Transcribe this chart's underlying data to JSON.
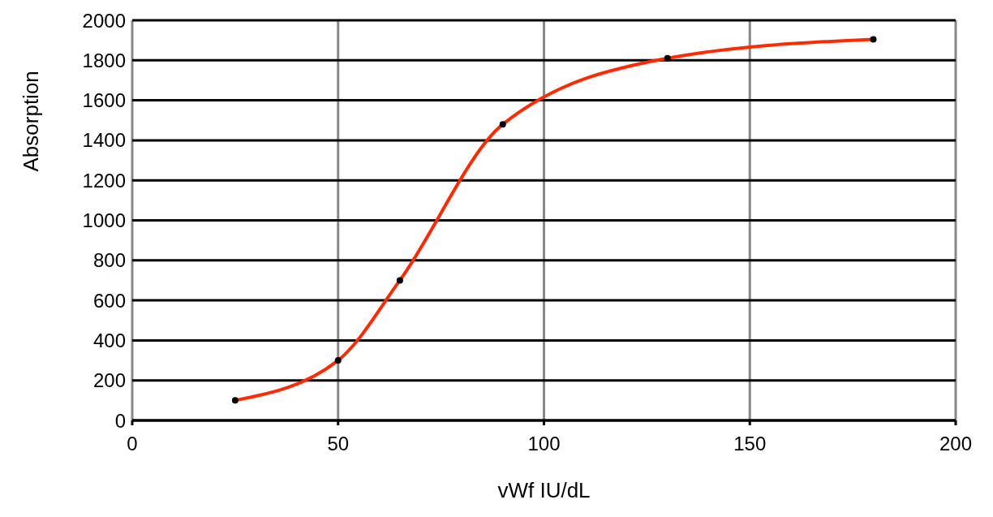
{
  "chart_data": {
    "type": "line",
    "xlabel": "vWf IU/dL",
    "ylabel": "Absorption",
    "x": [
      25,
      50,
      65,
      90,
      130,
      180
    ],
    "series": [
      {
        "color": "#ff2a00",
        "values": [
          100,
          300,
          700,
          1480,
          1810,
          1905
        ]
      }
    ],
    "xlim": [
      0,
      200
    ],
    "xticks": [
      0,
      50,
      100,
      150,
      200
    ],
    "ylim": [
      0,
      2000
    ],
    "yticks": [
      0,
      200,
      400,
      600,
      800,
      1000,
      1200,
      1400,
      1600,
      1800,
      2000
    ],
    "grid": true,
    "marker": "circle",
    "line_style": "solid"
  }
}
